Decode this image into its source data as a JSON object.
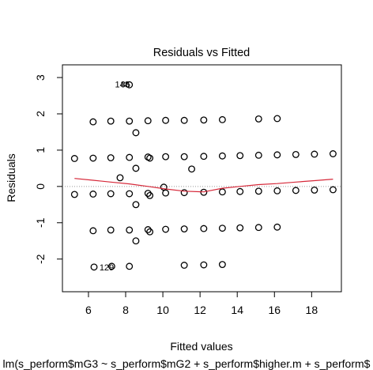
{
  "chart_data": {
    "type": "scatter",
    "title": "Residuals vs Fitted",
    "xlabel": "Fitted values",
    "ylabel": "Residuals",
    "subtitle": "lm(s_perform$mG3 ~ s_perform$mG2 + s_perform$higher.m + s_perform$",
    "xlim": [
      4.6,
      19.6
    ],
    "ylim": [
      -2.9,
      3.35
    ],
    "x_ticks": [
      6,
      8,
      10,
      12,
      14,
      16,
      18
    ],
    "y_ticks": [
      -2,
      -1,
      0,
      1,
      2,
      3
    ],
    "grid": false,
    "colors": {
      "points": "#000000",
      "smoother": "#d62839",
      "reference": "#999999"
    },
    "points": [
      [
        5.25,
        0.77
      ],
      [
        5.25,
        -0.22
      ],
      [
        6.25,
        1.78
      ],
      [
        6.25,
        0.78
      ],
      [
        6.25,
        -0.21
      ],
      [
        6.25,
        -1.22
      ],
      [
        6.3,
        -2.22
      ],
      [
        7.2,
        1.8
      ],
      [
        7.2,
        0.79
      ],
      [
        7.2,
        -0.2
      ],
      [
        7.2,
        -1.2
      ],
      [
        7.25,
        -2.2
      ],
      [
        7.7,
        0.24
      ],
      [
        8.2,
        2.8
      ],
      [
        8.2,
        1.8
      ],
      [
        8.2,
        0.8
      ],
      [
        8.2,
        -0.2
      ],
      [
        8.2,
        -1.2
      ],
      [
        8.2,
        -2.2
      ],
      [
        8.55,
        1.48
      ],
      [
        8.55,
        0.5
      ],
      [
        8.55,
        -0.5
      ],
      [
        8.55,
        -1.5
      ],
      [
        9.2,
        1.81
      ],
      [
        9.2,
        0.81
      ],
      [
        9.2,
        -0.19
      ],
      [
        9.2,
        -1.19
      ],
      [
        9.3,
        0.78
      ],
      [
        9.3,
        -0.25
      ],
      [
        9.3,
        -1.25
      ],
      [
        10.15,
        1.82
      ],
      [
        10.15,
        0.82
      ],
      [
        10.15,
        -0.18
      ],
      [
        10.15,
        -1.18
      ],
      [
        10.05,
        -0.02
      ],
      [
        11.15,
        1.82
      ],
      [
        11.15,
        0.82
      ],
      [
        11.15,
        -0.17
      ],
      [
        11.15,
        -1.17
      ],
      [
        11.15,
        -2.17
      ],
      [
        11.55,
        0.48
      ],
      [
        12.2,
        1.83
      ],
      [
        12.2,
        0.83
      ],
      [
        12.2,
        -0.16
      ],
      [
        12.2,
        -1.16
      ],
      [
        12.2,
        -2.16
      ],
      [
        13.2,
        1.84
      ],
      [
        13.2,
        0.84
      ],
      [
        13.2,
        -0.15
      ],
      [
        13.2,
        -1.15
      ],
      [
        13.2,
        -2.15
      ],
      [
        14.15,
        0.85
      ],
      [
        14.15,
        -0.14
      ],
      [
        14.15,
        -1.14
      ],
      [
        15.15,
        1.86
      ],
      [
        15.15,
        0.86
      ],
      [
        15.15,
        -0.13
      ],
      [
        15.15,
        -1.13
      ],
      [
        16.15,
        1.87
      ],
      [
        16.15,
        0.87
      ],
      [
        16.15,
        -0.12
      ],
      [
        16.15,
        -1.12
      ],
      [
        17.15,
        0.88
      ],
      [
        17.15,
        -0.11
      ],
      [
        18.15,
        0.89
      ],
      [
        18.15,
        -0.1
      ],
      [
        19.15,
        0.9
      ],
      [
        19.15,
        -0.09
      ]
    ],
    "smoother": [
      [
        5.25,
        0.22
      ],
      [
        6.25,
        0.17
      ],
      [
        7.2,
        0.12
      ],
      [
        8.2,
        0.07
      ],
      [
        9.2,
        0.0
      ],
      [
        10.15,
        -0.07
      ],
      [
        11.15,
        -0.13
      ],
      [
        12.2,
        -0.15
      ],
      [
        13.2,
        -0.05
      ],
      [
        14.15,
        0.0
      ],
      [
        15.15,
        0.05
      ],
      [
        16.15,
        0.08
      ],
      [
        17.15,
        0.12
      ],
      [
        18.15,
        0.16
      ],
      [
        19.15,
        0.2
      ]
    ],
    "annotations": [
      {
        "text": "148",
        "x": 8.2,
        "y": 2.8
      },
      {
        "text": "85",
        "x": 8.2,
        "y": 2.8
      },
      {
        "text": "129",
        "x": 6.3,
        "y": -2.22
      }
    ]
  }
}
